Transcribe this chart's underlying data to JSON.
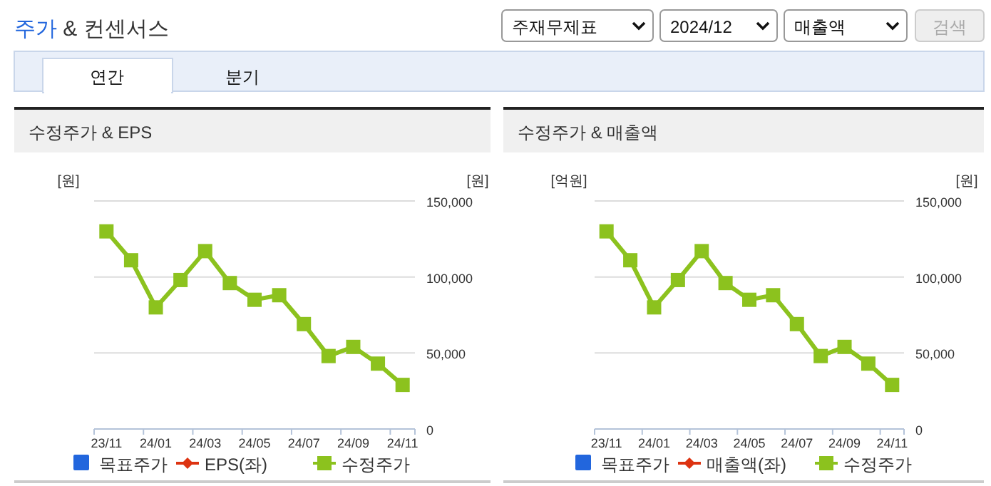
{
  "chart_data": [
    {
      "type": "other",
      "title": "주가 & 컨센서스",
      "annotations": [
        "주재무제표",
        "2024/12",
        "매출액",
        "검색",
        "연간",
        "분기"
      ]
    },
    {
      "type": "line",
      "title": "수정주가 & EPS",
      "ylabel": "[원]",
      "y2label": "[원]",
      "categories": [
        "23/11",
        null,
        "24/01",
        null,
        "24/03",
        null,
        "24/05",
        null,
        "24/07",
        null,
        "24/09",
        null,
        "24/11"
      ],
      "y2lim": [
        0,
        150000
      ],
      "y2ticks": [
        0,
        {
          "value": 50000,
          "label": "50,000"
        },
        {
          "value": 100000,
          "label": "100,000"
        },
        {
          "value": 150000,
          "label": "150,000"
        }
      ],
      "grid": "y",
      "legend": "bottom",
      "series": [
        {
          "name": "목표주가",
          "type": "bar",
          "color": "#2266dd",
          "values": [
            null,
            null,
            null,
            null,
            null,
            null,
            null,
            null,
            null,
            null,
            null,
            null,
            null
          ]
        },
        {
          "name": "EPS(좌)",
          "type": "line",
          "marker": "diamond",
          "color": "#dd3311",
          "values": [
            null,
            null,
            null,
            null,
            null,
            null,
            null,
            null,
            null,
            null,
            null,
            null,
            null
          ]
        },
        {
          "name": "수정주가",
          "type": "line",
          "marker": "square",
          "axis": "y2",
          "color": "#8cc21e",
          "values": [
            130000,
            111000,
            80000,
            98000,
            117000,
            96000,
            85000,
            88000,
            69000,
            48000,
            54000,
            43000,
            29000
          ]
        }
      ]
    },
    {
      "type": "line",
      "title": "수정주가 & 매출액",
      "ylabel": "[억원]",
      "y2label": "[원]",
      "categories": [
        "23/11",
        null,
        "24/01",
        null,
        "24/03",
        null,
        "24/05",
        null,
        "24/07",
        null,
        "24/09",
        null,
        "24/11"
      ],
      "y2lim": [
        0,
        150000
      ],
      "y2ticks": [
        0,
        {
          "value": 50000,
          "label": "50,000"
        },
        {
          "value": 100000,
          "label": "100,000"
        },
        {
          "value": 150000,
          "label": "150,000"
        }
      ],
      "grid": "y",
      "legend": "bottom",
      "series": [
        {
          "name": "목표주가",
          "type": "bar",
          "color": "#2266dd",
          "values": [
            null,
            null,
            null,
            null,
            null,
            null,
            null,
            null,
            null,
            null,
            null,
            null,
            null
          ]
        },
        {
          "name": "매출액(좌)",
          "type": "line",
          "marker": "diamond",
          "color": "#dd3311",
          "values": [
            null,
            null,
            null,
            null,
            null,
            null,
            null,
            null,
            null,
            null,
            null,
            null,
            null
          ]
        },
        {
          "name": "수정주가",
          "type": "line",
          "marker": "square",
          "axis": "y2",
          "color": "#8cc21e",
          "values": [
            130000,
            111000,
            80000,
            98000,
            117000,
            96000,
            85000,
            88000,
            69000,
            48000,
            54000,
            43000,
            29000
          ]
        }
      ]
    }
  ]
}
